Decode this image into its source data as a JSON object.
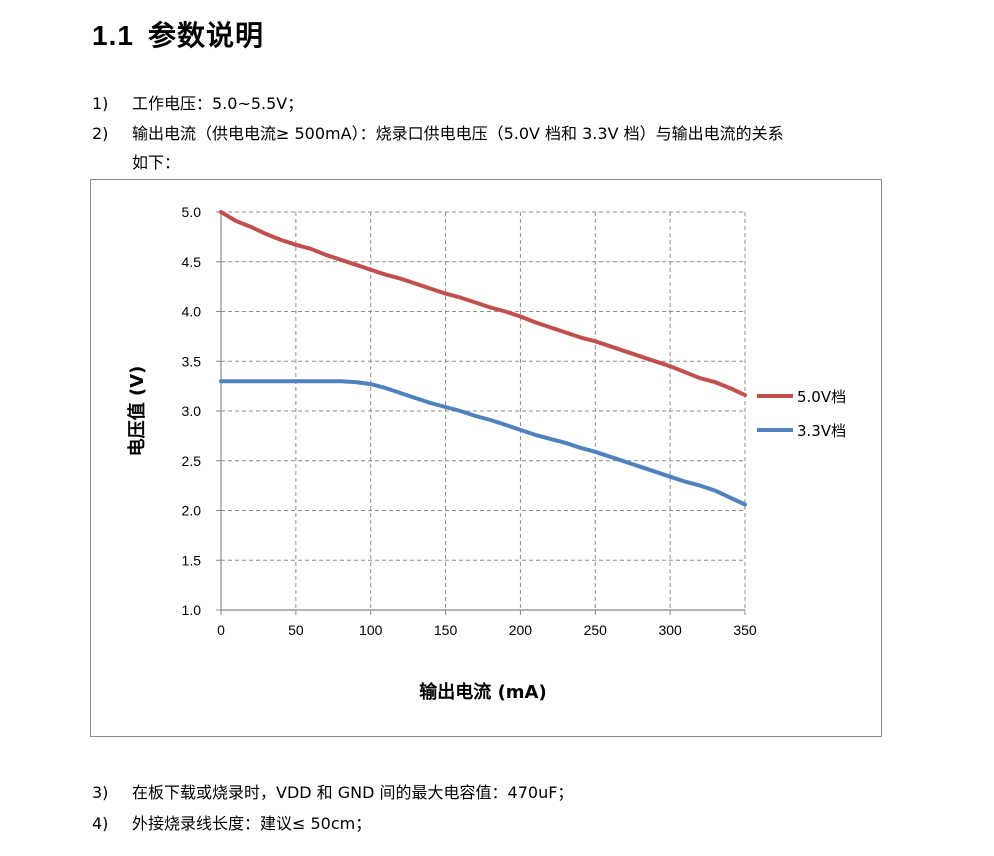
{
  "section": {
    "number": "1.1",
    "title": "参数说明"
  },
  "items": [
    {
      "idx": "1)",
      "text": "工作电压：5.0~5.5V；"
    },
    {
      "idx": "2)",
      "text": "输出电流（供电电流≥ 500mA）：烧录口供电电压（5.0V 档和 3.3V 档）与输出电流的关系",
      "cont": "如下："
    },
    {
      "idx": "3)",
      "text": "在板下载或烧录时，VDD 和 GND 间的最大电容值：470uF；"
    },
    {
      "idx": "4)",
      "text": "外接烧录线长度：建议≤ 50cm；"
    }
  ],
  "chart_data": {
    "type": "line",
    "xlabel": "输出电流 (mA)",
    "ylabel": "电压值 (V)",
    "xlim": [
      0,
      350
    ],
    "ylim": [
      1.0,
      5.0
    ],
    "xticks": [
      "0",
      "50",
      "100",
      "150",
      "200",
      "250",
      "300",
      "350"
    ],
    "yticks": [
      "1.0",
      "1.5",
      "2.0",
      "2.5",
      "3.0",
      "3.5",
      "4.0",
      "4.5",
      "5.0"
    ],
    "grid": true,
    "legend": "right",
    "series": [
      {
        "name": "5.0V档",
        "color": "#c0504d",
        "x": [
          0,
          10,
          20,
          30,
          40,
          50,
          60,
          70,
          80,
          90,
          100,
          110,
          120,
          130,
          140,
          150,
          160,
          170,
          180,
          190,
          200,
          210,
          220,
          230,
          240,
          250,
          260,
          270,
          280,
          290,
          300,
          310,
          320,
          330,
          340,
          350
        ],
        "y": [
          5.0,
          4.91,
          4.85,
          4.78,
          4.72,
          4.67,
          4.63,
          4.57,
          4.52,
          4.47,
          4.42,
          4.37,
          4.33,
          4.28,
          4.23,
          4.18,
          4.14,
          4.09,
          4.04,
          4.0,
          3.95,
          3.89,
          3.84,
          3.79,
          3.74,
          3.7,
          3.65,
          3.6,
          3.55,
          3.5,
          3.45,
          3.39,
          3.33,
          3.29,
          3.23,
          3.16
        ]
      },
      {
        "name": "3.3V档",
        "color": "#4f81bd",
        "x": [
          0,
          10,
          20,
          30,
          40,
          50,
          60,
          70,
          80,
          90,
          100,
          110,
          120,
          130,
          140,
          150,
          160,
          170,
          180,
          190,
          200,
          210,
          220,
          230,
          240,
          250,
          260,
          270,
          280,
          290,
          300,
          310,
          320,
          330,
          340,
          350
        ],
        "y": [
          3.3,
          3.3,
          3.3,
          3.3,
          3.3,
          3.3,
          3.3,
          3.3,
          3.3,
          3.29,
          3.27,
          3.23,
          3.18,
          3.13,
          3.08,
          3.04,
          3.0,
          2.95,
          2.91,
          2.86,
          2.81,
          2.76,
          2.72,
          2.68,
          2.63,
          2.59,
          2.54,
          2.49,
          2.44,
          2.39,
          2.34,
          2.29,
          2.25,
          2.2,
          2.13,
          2.06
        ]
      }
    ]
  }
}
